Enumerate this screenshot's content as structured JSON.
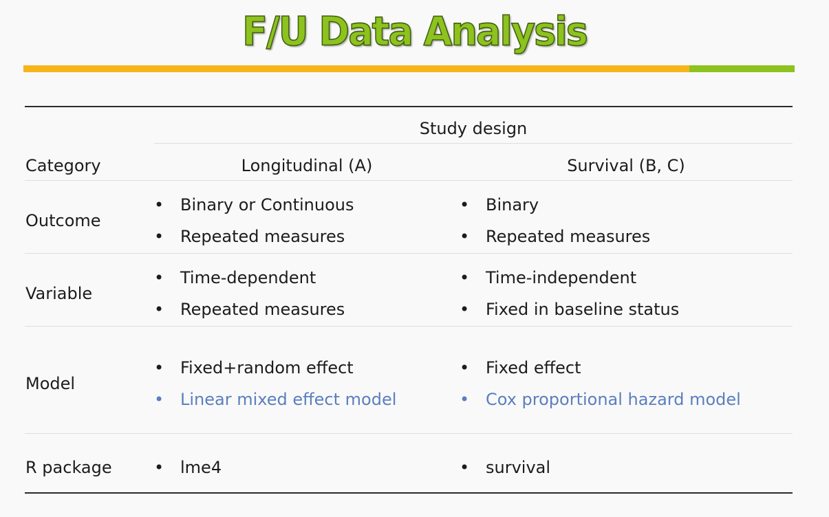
{
  "title": "F/U Data Analysis",
  "colors": {
    "title_fill": "#8dc21f",
    "bar_orange": "#f6b51a",
    "bar_green": "#8dc21f",
    "highlight_blue": "#5a7fbf"
  },
  "table": {
    "group_header": "Study design",
    "category_header": "Category",
    "columns": [
      "Longitudinal (A)",
      "Survival (B, C)"
    ],
    "rows": [
      {
        "label": "Outcome",
        "a": [
          "Binary or Continuous",
          "Repeated measures"
        ],
        "b": [
          "Binary",
          "Repeated measures"
        ]
      },
      {
        "label": "Variable",
        "a": [
          "Time-dependent",
          "Repeated measures"
        ],
        "b": [
          "Time-independent",
          "Fixed in baseline status"
        ]
      },
      {
        "label": "Model",
        "a": [
          "Fixed+random effect",
          "Linear mixed effect model"
        ],
        "b": [
          "Fixed effect",
          "Cox proportional hazard model"
        ]
      },
      {
        "label": "R package",
        "a": [
          "lme4"
        ],
        "b": [
          "survival"
        ]
      }
    ],
    "bullet": "•"
  }
}
